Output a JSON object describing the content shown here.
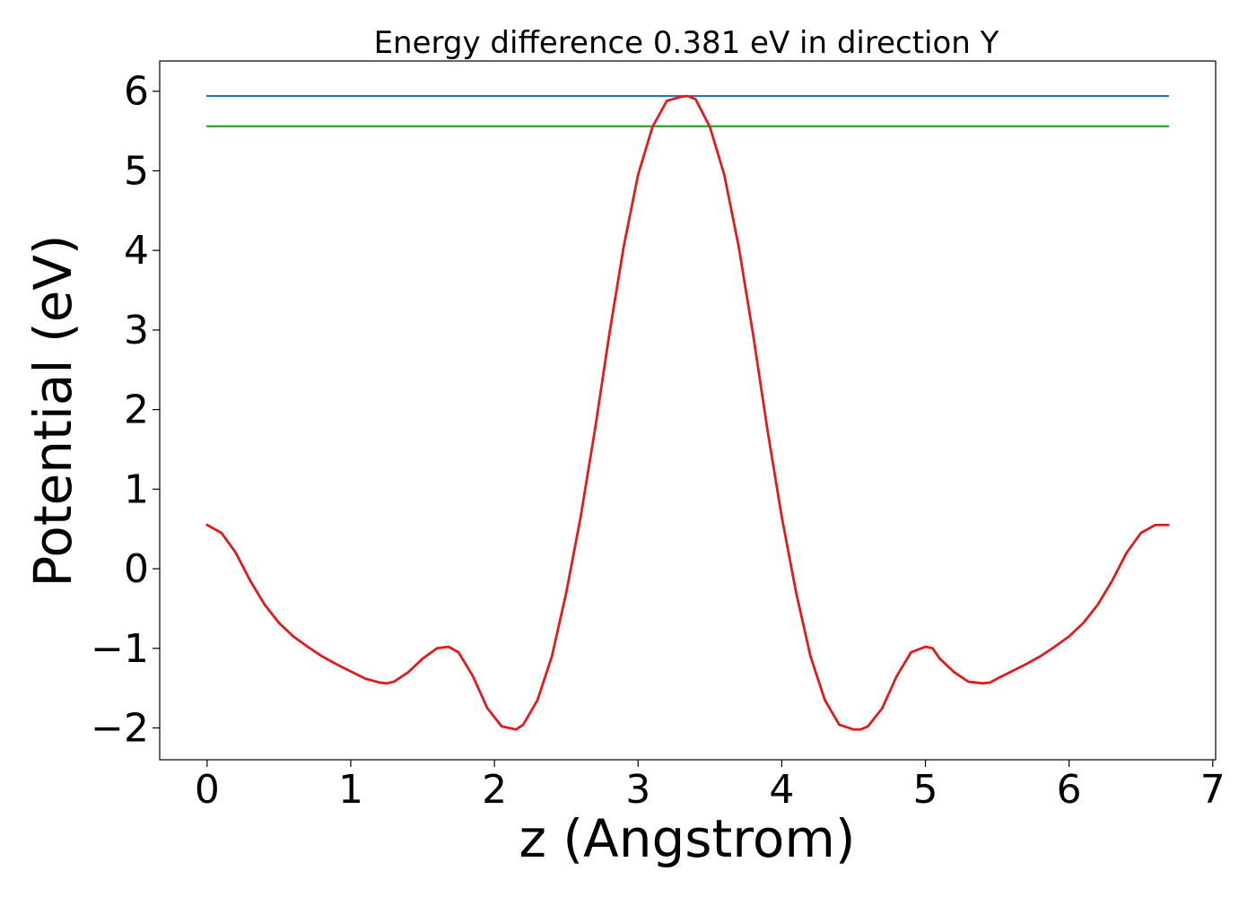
{
  "chart_data": {
    "type": "line",
    "title": "Energy difference 0.381 eV in direction Y",
    "xlabel": "z (Angstrom)",
    "ylabel": "Potential (eV)",
    "xlim": [
      -0.33,
      7.02
    ],
    "ylim": [
      -2.4,
      6.38
    ],
    "xticks": [
      0,
      1,
      2,
      3,
      4,
      5,
      6,
      7
    ],
    "yticks": [
      -2,
      -1,
      0,
      1,
      2,
      3,
      4,
      5,
      6
    ],
    "xtick_labels": [
      "0",
      "1",
      "2",
      "3",
      "4",
      "5",
      "6",
      "7"
    ],
    "ytick_labels": [
      "−2",
      "−1",
      "0",
      "1",
      "2",
      "3",
      "4",
      "5",
      "6"
    ],
    "grid": false,
    "legend": "none",
    "series": [
      {
        "kind": "hline",
        "color": "#1f77b4",
        "x": [
          0,
          6.69
        ],
        "y": [
          5.94,
          5.94
        ]
      },
      {
        "kind": "hline",
        "color": "#2ca02c",
        "x": [
          0,
          6.69
        ],
        "y": [
          5.56,
          5.56
        ]
      },
      {
        "kind": "curve",
        "color": "#e31a1c",
        "x": [
          0.0,
          0.1,
          0.2,
          0.3,
          0.4,
          0.5,
          0.6,
          0.7,
          0.8,
          0.9,
          1.0,
          1.1,
          1.2,
          1.25,
          1.3,
          1.4,
          1.5,
          1.6,
          1.68,
          1.75,
          1.85,
          1.95,
          2.05,
          2.15,
          2.2,
          2.3,
          2.4,
          2.5,
          2.6,
          2.7,
          2.8,
          2.9,
          3.0,
          3.1,
          3.2,
          3.3,
          3.345,
          3.4,
          3.5,
          3.6,
          3.7,
          3.8,
          3.9,
          4.0,
          4.1,
          4.2,
          4.3,
          4.4,
          4.5,
          4.55,
          4.6,
          4.7,
          4.8,
          4.9,
          5.0,
          5.05,
          5.1,
          5.2,
          5.3,
          5.4,
          5.45,
          5.5,
          5.6,
          5.7,
          5.8,
          5.9,
          6.0,
          6.1,
          6.2,
          6.3,
          6.4,
          6.5,
          6.6,
          6.69
        ],
        "y": [
          0.55,
          0.45,
          0.2,
          -0.15,
          -0.45,
          -0.68,
          -0.85,
          -0.98,
          -1.1,
          -1.2,
          -1.29,
          -1.38,
          -1.43,
          -1.44,
          -1.42,
          -1.3,
          -1.13,
          -1.0,
          -0.98,
          -1.05,
          -1.35,
          -1.75,
          -1.98,
          -2.02,
          -1.96,
          -1.65,
          -1.1,
          -0.3,
          0.65,
          1.75,
          2.95,
          4.05,
          4.95,
          5.55,
          5.88,
          5.93,
          5.94,
          5.9,
          5.55,
          4.95,
          4.05,
          2.95,
          1.75,
          0.65,
          -0.3,
          -1.1,
          -1.65,
          -1.96,
          -2.02,
          -2.02,
          -1.98,
          -1.75,
          -1.35,
          -1.05,
          -0.98,
          -1.0,
          -1.13,
          -1.3,
          -1.42,
          -1.44,
          -1.43,
          -1.38,
          -1.29,
          -1.2,
          -1.1,
          -0.98,
          -0.85,
          -0.68,
          -0.45,
          -0.15,
          0.2,
          0.45,
          0.55,
          0.55
        ]
      }
    ]
  }
}
